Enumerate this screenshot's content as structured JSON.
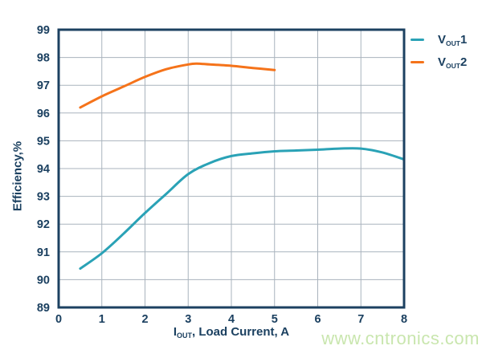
{
  "colors": {
    "navy_text": "#1b4060",
    "frame": "#1c4161",
    "grid": "#a9b3bd",
    "vout1_teal": "#2aa2b6",
    "vout2_orange": "#f5731a",
    "watermark_green": "#c9e6ae",
    "background": "#ffffff"
  },
  "axes": {
    "y_title": "Efficiency,%",
    "x_title_pre": "I",
    "x_title_sub": "OUT",
    "x_title_post": ", Load Current, A",
    "x_ticks": [
      0,
      1,
      2,
      3,
      4,
      5,
      6,
      7,
      8
    ],
    "y_ticks": [
      89,
      90,
      91,
      92,
      93,
      94,
      95,
      96,
      97,
      98,
      99
    ]
  },
  "legend": [
    {
      "pre": "V",
      "sub": "OUT",
      "post": "1",
      "color": "#2aa2b6"
    },
    {
      "pre": "V",
      "sub": "OUT",
      "post": "2",
      "color": "#f5731a"
    }
  ],
  "watermark": {
    "text": "www.cntronics.com"
  },
  "chart_data": {
    "type": "line",
    "title": "",
    "xlabel": "IOUT, Load Current, A",
    "ylabel": "Efficiency,%",
    "xlim": [
      0,
      8
    ],
    "ylim": [
      89,
      99
    ],
    "grid": true,
    "legend_position": "top-right-outside",
    "series": [
      {
        "name": "VOUT1",
        "color": "#2aa2b6",
        "x": [
          0.5,
          1,
          1.5,
          2,
          2.5,
          3,
          3.5,
          4,
          4.5,
          5,
          5.5,
          6,
          6.5,
          7,
          7.5,
          8
        ],
        "y": [
          90.4,
          90.95,
          91.65,
          92.4,
          93.1,
          93.8,
          94.2,
          94.45,
          94.55,
          94.62,
          94.65,
          94.68,
          94.72,
          94.72,
          94.58,
          94.33
        ]
      },
      {
        "name": "VOUT2",
        "color": "#f5731a",
        "x": [
          0.5,
          1,
          1.5,
          2,
          2.5,
          3,
          3.2,
          3.5,
          4,
          4.5,
          5
        ],
        "y": [
          96.2,
          96.6,
          96.95,
          97.3,
          97.58,
          97.75,
          97.78,
          97.75,
          97.7,
          97.62,
          97.55
        ]
      }
    ]
  }
}
